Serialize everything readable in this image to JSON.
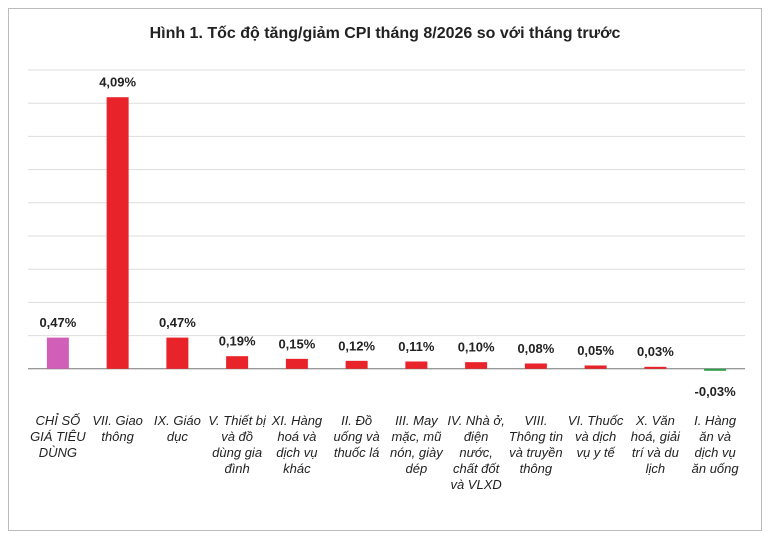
{
  "chart_data": {
    "type": "bar",
    "title": "Hình 1. Tốc độ tăng/giảm CPI tháng 8/2026 so với tháng trước",
    "categories": [
      "CHỈ SỐ GIÁ TIÊU DÙNG",
      "VII. Giao thông",
      "IX. Giáo dục",
      "V. Thiết bị và đồ dùng gia đình",
      "XI. Hàng hoá và dịch vụ khác",
      "II. Đồ uống và thuốc lá",
      "III. May mặc, mũ nón, giày dép",
      "IV. Nhà ở, điện nước, chất đốt và VLXD",
      "VIII. Thông tin và truyền thông",
      "VI. Thuốc và dịch vụ y tế",
      "X. Văn hoá, giải trí và du lịch",
      "I. Hàng ăn và dịch vụ ăn uống"
    ],
    "values": [
      0.47,
      4.09,
      0.47,
      0.19,
      0.15,
      0.12,
      0.11,
      0.1,
      0.08,
      0.05,
      0.03,
      -0.03
    ],
    "value_labels": [
      "0,47%",
      "4,09%",
      "0,47%",
      "0,19%",
      "0,15%",
      "0,12%",
      "0,11%",
      "0,10%",
      "0,08%",
      "0,05%",
      "0,03%",
      "-0,03%"
    ],
    "colors": [
      "#d15fb7",
      "#e8232a",
      "#e8232a",
      "#e8232a",
      "#e8232a",
      "#e8232a",
      "#e8232a",
      "#e8232a",
      "#e8232a",
      "#e8232a",
      "#e8232a",
      "#2e9e4a"
    ],
    "ylim": [
      -0.5,
      4.5
    ],
    "yticks": [
      0,
      0.5,
      1,
      1.5,
      2,
      2.5,
      3,
      3.5,
      4,
      4.5
    ],
    "grid": true
  }
}
